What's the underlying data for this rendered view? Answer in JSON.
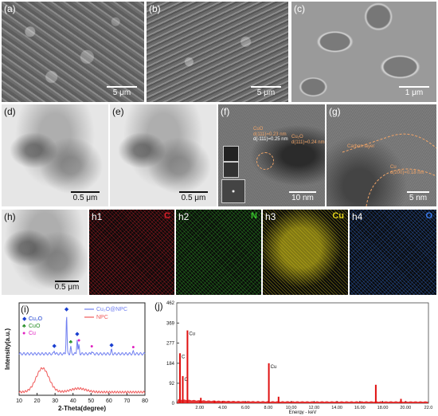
{
  "panels": {
    "a": {
      "label": "(a)",
      "scale": "5 μm"
    },
    "b": {
      "label": "(b)",
      "scale": "5 μm"
    },
    "c": {
      "label": "(c)",
      "scale": "1 μm"
    },
    "d": {
      "label": "(d)",
      "scale": "0.5 μm"
    },
    "e": {
      "label": "(e)",
      "scale": "0.5 μm"
    },
    "f": {
      "label": "(f)",
      "scale": "10 nm",
      "annotations": {
        "cuo_title": "CuO",
        "cuo_d1": "d(111)=0.23 nm",
        "cuo_d2": "d(-111)=0.25 nm",
        "cu2o_title": "Cu₂O",
        "cu2o_d": "d(111)=0.24 nm"
      }
    },
    "g": {
      "label": "(g)",
      "scale": "5 nm",
      "annotations": {
        "carbon": "Carbon layer",
        "cu_title": "Cu",
        "cu_d": "d(200)=0.18 nm"
      }
    },
    "h": {
      "label": "(h)",
      "scale": "0.5 μm"
    },
    "h1": {
      "label": "h1",
      "element": "C",
      "color": "#e0202a"
    },
    "h2": {
      "label": "h2",
      "element": "N",
      "color": "#36c02a"
    },
    "h3": {
      "label": "h3",
      "element": "Cu",
      "color": "#e3d21a"
    },
    "h4": {
      "label": "h4",
      "element": "O",
      "color": "#3a7cf0"
    },
    "i": {
      "label": "(i)"
    },
    "j": {
      "label": "(j)"
    }
  },
  "chart_data": [
    {
      "type": "line",
      "panel": "(i)",
      "xlabel": "2-Theta(degree)",
      "ylabel": "Intensity(a.u.)",
      "xlim": [
        10,
        80
      ],
      "xticks": [
        10,
        20,
        30,
        40,
        50,
        60,
        70,
        80
      ],
      "legend": {
        "phases": [
          {
            "name": "Cu₂O",
            "marker": "◆",
            "color": "#1a3fd0"
          },
          {
            "name": "CuO",
            "marker": "♣",
            "color": "#1f8a1f"
          },
          {
            "name": "Cu",
            "marker": "●",
            "color": "#e020c0"
          }
        ],
        "series": [
          {
            "name": "Cu₂O@NPC",
            "color": "#6f7ef0"
          },
          {
            "name": "NPC",
            "color": "#f05a5a"
          }
        ]
      },
      "series": [
        {
          "name": "Cu₂O@NPC",
          "color": "#6f7ef0",
          "peaks": [
            {
              "x": 29.6,
              "h": 0.08
            },
            {
              "x": 36.4,
              "h": 1.0
            },
            {
              "x": 38.7,
              "h": 0.18
            },
            {
              "x": 42.3,
              "h": 0.38
            },
            {
              "x": 43.3,
              "h": 0.22
            },
            {
              "x": 50.4,
              "h": 0.07
            },
            {
              "x": 61.4,
              "h": 0.1
            },
            {
              "x": 73.5,
              "h": 0.05
            }
          ]
        },
        {
          "name": "NPC",
          "color": "#f05a5a",
          "broad": [
            {
              "x": 23,
              "h": 1.0,
              "w": 5
            },
            {
              "x": 43,
              "h": 0.15,
              "w": 6
            }
          ]
        }
      ],
      "phase_markers": [
        {
          "x": 29.6,
          "phase": "Cu₂O"
        },
        {
          "x": 36.4,
          "phase": "Cu₂O"
        },
        {
          "x": 42.3,
          "phase": "Cu₂O"
        },
        {
          "x": 61.4,
          "phase": "Cu₂O"
        },
        {
          "x": 38.7,
          "phase": "CuO"
        },
        {
          "x": 43.3,
          "phase": "Cu"
        },
        {
          "x": 50.4,
          "phase": "Cu"
        },
        {
          "x": 73.5,
          "phase": "Cu"
        }
      ]
    },
    {
      "type": "bar",
      "panel": "(j)",
      "xlabel": "Energy - keV",
      "xlim": [
        0,
        22
      ],
      "xticks": [
        "2.00",
        "4.00",
        "6.00",
        "8.00",
        "10.00",
        "12.00",
        "14.00",
        "16.00",
        "18.00",
        "20.00",
        "22.0"
      ],
      "ylim": [
        0,
        462
      ],
      "yticks": [
        0,
        92,
        184,
        277,
        369,
        462
      ],
      "color": "#e01010",
      "peaks": [
        {
          "x": 0.28,
          "y": 230,
          "label": "C"
        },
        {
          "x": 0.52,
          "y": 125,
          "label": "O"
        },
        {
          "x": 0.93,
          "y": 335,
          "label": "Cu"
        },
        {
          "x": 2.1,
          "y": 25
        },
        {
          "x": 3.3,
          "y": 12
        },
        {
          "x": 8.05,
          "y": 184,
          "label": "Cu"
        },
        {
          "x": 8.9,
          "y": 30
        },
        {
          "x": 17.4,
          "y": 85
        },
        {
          "x": 19.6,
          "y": 20
        }
      ]
    }
  ]
}
